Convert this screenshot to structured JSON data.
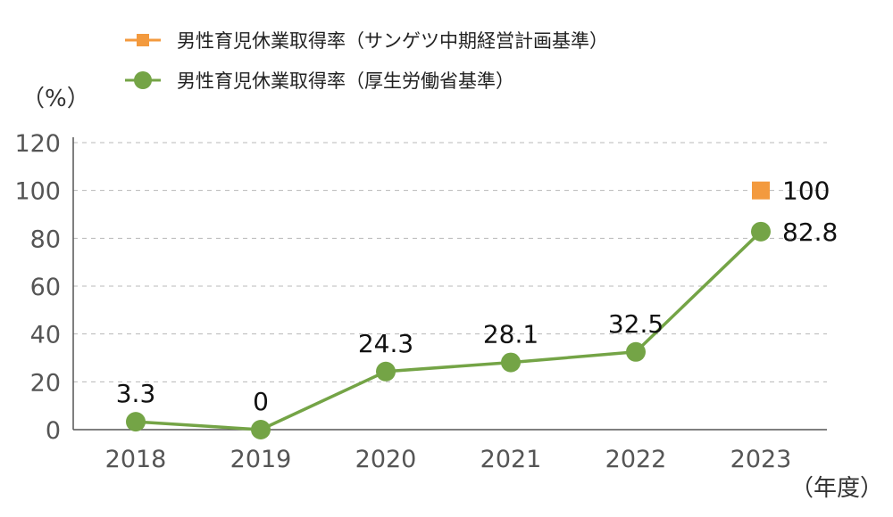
{
  "chart_data": {
    "type": "line",
    "categories": [
      "2018",
      "2019",
      "2020",
      "2021",
      "2022",
      "2023"
    ],
    "series": [
      {
        "name": "男性育児休業取得率（サンゲツ中期経営計画基準）",
        "marker": "square",
        "color": "#f39a3e",
        "values": [
          null,
          null,
          null,
          null,
          null,
          100
        ],
        "labels": [
          null,
          null,
          null,
          null,
          null,
          "100"
        ]
      },
      {
        "name": "男性育児休業取得率（厚生労働省基準）",
        "marker": "circle",
        "color": "#74a446",
        "values": [
          3.3,
          0,
          24.3,
          28.1,
          32.5,
          82.8
        ],
        "labels": [
          "3.3",
          "0",
          "24.3",
          "28.1",
          "32.5",
          "82.8"
        ]
      }
    ],
    "y_ticks": [
      "0",
      "20",
      "40",
      "60",
      "80",
      "100",
      "120"
    ],
    "ylim": [
      0,
      120
    ],
    "ylabel": "（%）",
    "xlabel": "（年度）",
    "grid": "horizontal dashed",
    "legend_position": "top-left"
  }
}
